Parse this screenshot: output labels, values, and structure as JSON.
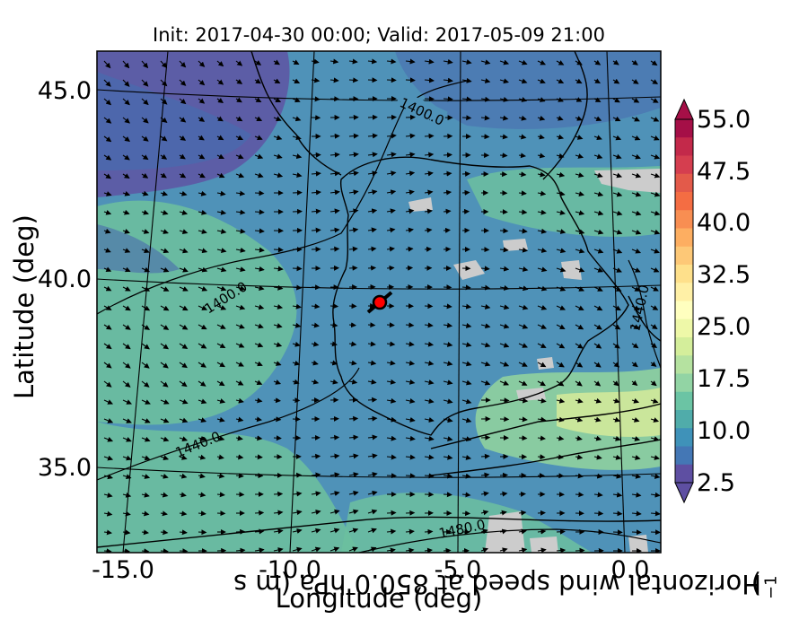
{
  "title": "Init: 2017-04-30 00:00; Valid: 2017-05-09 21:00",
  "xlabel": "Longitude (deg)",
  "ylabel": "Latitude (deg)",
  "colorbar": {
    "label_main": "Horizontal wind speed at 850.0 hPa (m s",
    "label_exp": "−1",
    "label_close": ")",
    "ticks": [
      "55.0",
      "47.5",
      "40.0",
      "32.5",
      "25.0",
      "17.5",
      "10.0",
      "2.5"
    ],
    "colors": [
      "#a50f47",
      "#c3294a",
      "#d53e4f",
      "#e35a4a",
      "#f46d43",
      "#f88e52",
      "#fdae61",
      "#fdc877",
      "#fee08b",
      "#fff0a6",
      "#ffffbf",
      "#eef8a8",
      "#d4ee9b",
      "#b5e2a0",
      "#92d4a4",
      "#6bc4a4",
      "#50acaa",
      "#3f92b9",
      "#4477b5",
      "#5e4fa2"
    ]
  },
  "x_ticks": [
    "-15.0",
    "-10.0",
    "-5.0",
    "0.0"
  ],
  "y_ticks": [
    "45.0",
    "40.0",
    "35.0"
  ],
  "contour_labels": [
    "1400.0",
    "1400.0",
    "1440.0",
    "1440.0",
    "1480.0"
  ],
  "map_colors": {
    "bg": "#4f92b8",
    "light": "#6cbf9f",
    "light2": "#8fd19e",
    "dark": "#4a6aae",
    "purple": "#5d58a4",
    "yellow": "#cde79b",
    "grey": "#cccccc",
    "marker": "#ff0000"
  }
}
